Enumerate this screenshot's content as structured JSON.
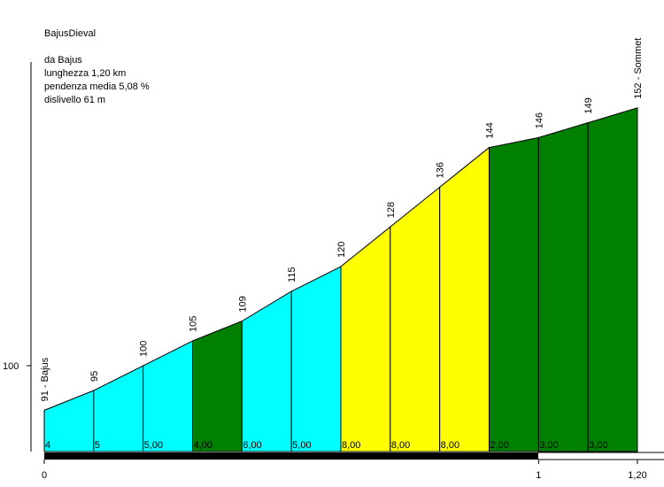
{
  "chart_data": {
    "type": "area",
    "title": "BajusDieval",
    "info_lines": [
      "da Bajus",
      "lunghezza 1,20 km",
      "pendenza media 5,08 %",
      "dislivello 61 m"
    ],
    "y_tick": {
      "value": 100,
      "label": "100"
    },
    "x_ticks": [
      {
        "value": 0,
        "label": "0"
      },
      {
        "value": 1,
        "label": "1"
      },
      {
        "value": 1.2,
        "label": "1,20"
      }
    ],
    "points": [
      {
        "x": 0.0,
        "elev": 91,
        "label": "91 - Bajus"
      },
      {
        "x": 0.1,
        "elev": 95,
        "label": "95"
      },
      {
        "x": 0.2,
        "elev": 100,
        "label": "100"
      },
      {
        "x": 0.3,
        "elev": 105,
        "label": "105"
      },
      {
        "x": 0.4,
        "elev": 109,
        "label": "109"
      },
      {
        "x": 0.5,
        "elev": 115,
        "label": "115"
      },
      {
        "x": 0.6,
        "elev": 120,
        "label": "120"
      },
      {
        "x": 0.7,
        "elev": 128,
        "label": "128"
      },
      {
        "x": 0.8,
        "elev": 136,
        "label": "136"
      },
      {
        "x": 0.9,
        "elev": 144,
        "label": "144"
      },
      {
        "x": 1.0,
        "elev": 146,
        "label": "146"
      },
      {
        "x": 1.1,
        "elev": 149,
        "label": "149"
      },
      {
        "x": 1.2,
        "elev": 152,
        "label": "152 - Sommet"
      }
    ],
    "segments": [
      {
        "grade": "4",
        "color": "#00ffff"
      },
      {
        "grade": "5",
        "color": "#00ffff"
      },
      {
        "grade": "5,00",
        "color": "#00ffff"
      },
      {
        "grade": "4,00",
        "color": "#008000"
      },
      {
        "grade": "6,00",
        "color": "#00ffff"
      },
      {
        "grade": "5,00",
        "color": "#00ffff"
      },
      {
        "grade": "8,00",
        "color": "#ffff00"
      },
      {
        "grade": "8,00",
        "color": "#ffff00"
      },
      {
        "grade": "8,00",
        "color": "#ffff00"
      },
      {
        "grade": "2,00",
        "color": "#008000"
      },
      {
        "grade": "3,00",
        "color": "#008000"
      },
      {
        "grade": "3,00",
        "color": "#008000"
      }
    ]
  }
}
